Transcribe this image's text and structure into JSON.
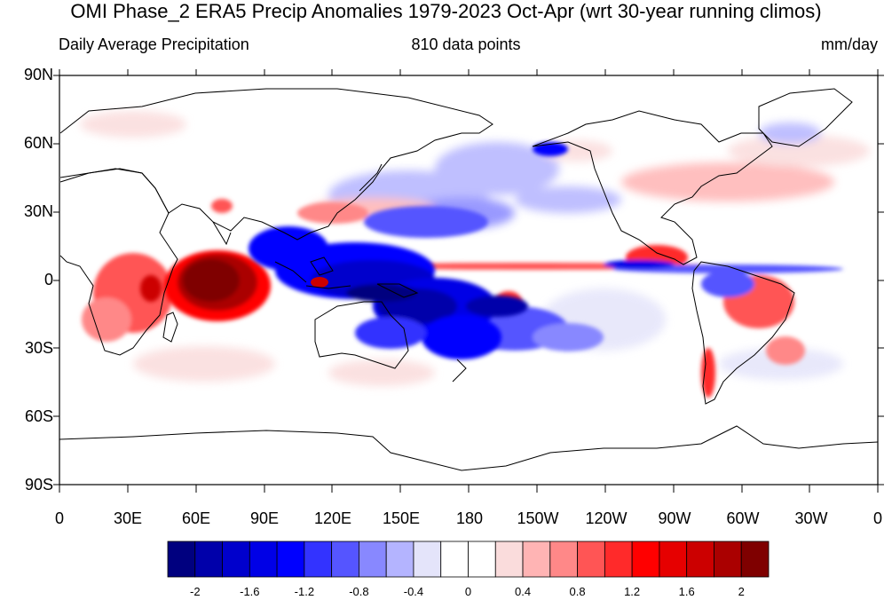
{
  "title": "OMI Phase_2 ERA5 Precip Anomalies 1979-2023 Oct-Apr (wrt 30-year running climos)",
  "subtitle_left": "Daily Average Precipitation",
  "subtitle_center": "810 data points",
  "subtitle_right": "mm/day",
  "y_labels": [
    "90N",
    "60N",
    "30N",
    "0",
    "30S",
    "60S",
    "90S"
  ],
  "x_labels": [
    "0",
    "30E",
    "60E",
    "90E",
    "120E",
    "150E",
    "180",
    "150W",
    "120W",
    "90W",
    "60W",
    "30W",
    "0"
  ],
  "colorbar": {
    "colors": [
      "#00007f",
      "#0000aa",
      "#0000cc",
      "#0000e6",
      "#0000ff",
      "#3333ff",
      "#5555ff",
      "#8888ff",
      "#b4b4ff",
      "#e4e4fa",
      "#ffffff",
      "#ffffff",
      "#fadcdc",
      "#ffb4b4",
      "#ff8888",
      "#ff5555",
      "#ff2a2a",
      "#ff0000",
      "#e60000",
      "#cc0000",
      "#aa0000",
      "#7f0000"
    ],
    "tick_labels": [
      "-2",
      "-1.6",
      "-1.2",
      "-0.8",
      "-0.4",
      "0",
      "0.4",
      "0.8",
      "1.2",
      "1.6",
      "2"
    ]
  },
  "colors": {
    "positive_strong": "#8b0000",
    "positive": "#ff0000",
    "positive_weak": "#ffb4b4",
    "negative_strong": "#00008b",
    "negative": "#0000ff",
    "negative_weak": "#b4b4ff",
    "coastline": "#000000"
  }
}
